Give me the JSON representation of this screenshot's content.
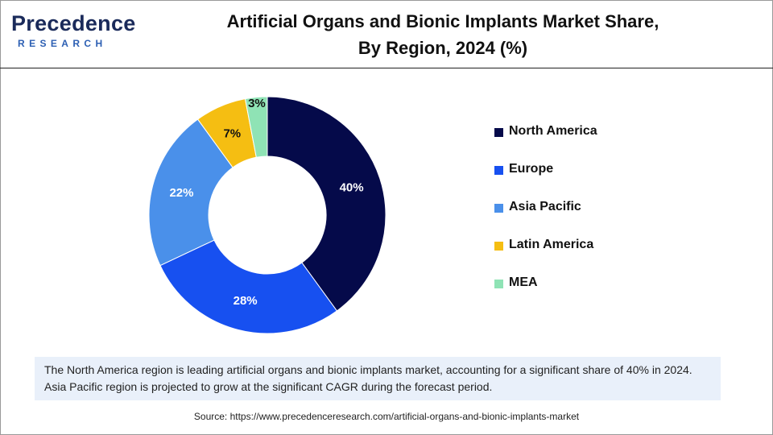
{
  "logo": {
    "main": "Precedence",
    "sub": "RESEARCH"
  },
  "title_line1": "Artificial Organs and Bionic Implants Market Share,",
  "title_line2": "By Region, 2024 (%)",
  "chart_data": {
    "type": "pie",
    "donut": true,
    "unit": "%",
    "categories": [
      "North America",
      "Europe",
      "Asia Pacific",
      "Latin America",
      "MEA"
    ],
    "values": [
      40,
      28,
      22,
      7,
      3
    ],
    "labels": [
      "40%",
      "28%",
      "22%",
      "7%",
      "3%"
    ],
    "colors": [
      "#050a4a",
      "#1750f0",
      "#4a90ea",
      "#f5be12",
      "#8fe3b5"
    ],
    "label_colors": [
      "#ffffff",
      "#ffffff",
      "#ffffff",
      "#111111",
      "#111111"
    ],
    "legend_position": "right"
  },
  "note": "The North America region is leading artificial organs and bionic implants market, accounting for a significant share of 40% in 2024. Asia Pacific region is projected to grow at the significant CAGR during the forecast period.",
  "source": "Source: https://www.precedenceresearch.com/artificial-organs-and-bionic-implants-market"
}
